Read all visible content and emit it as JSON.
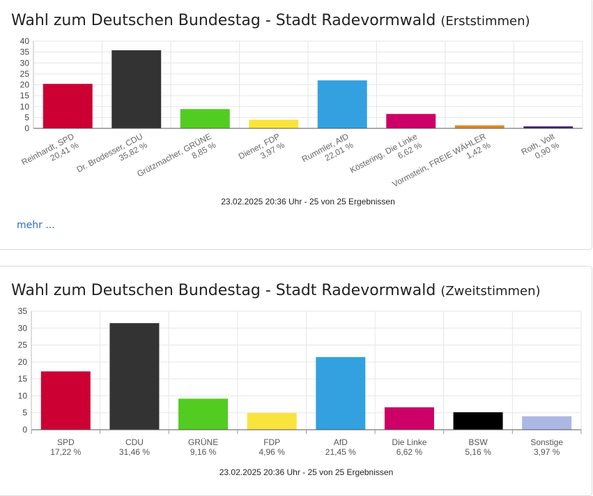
{
  "erststimmen": {
    "title": "Wahl zum Deutschen Bundestag - Stadt Radevormwald",
    "subtitle": "(Erststimmen)",
    "more_link": "mehr ...",
    "chart_data": {
      "type": "bar",
      "categories": [
        "Reinhardt, SPD",
        "Dr. Brodesser, CDU",
        "Grützmacher, GRÜNE",
        "Diener, FDP",
        "Rummler, AfD",
        "Köstering, Die Linke",
        "Vormstein, FREIE WÄHLER",
        "Roth, Volt"
      ],
      "values": [
        20.41,
        35.82,
        8.85,
        3.97,
        22.01,
        6.62,
        1.42,
        0.9
      ],
      "value_labels": [
        "20,41 %",
        "35,82 %",
        "8,85 %",
        "3,97 %",
        "22,01 %",
        "6,62 %",
        "1,42 %",
        "0,90 %"
      ],
      "colors": [
        "#cc0033",
        "#333333",
        "#52cc21",
        "#f9e43d",
        "#33a1e0",
        "#cc0066",
        "#e08a2c",
        "#3d1a6e"
      ],
      "ylim": [
        0,
        40
      ],
      "yticks": [
        0,
        5,
        10,
        15,
        20,
        25,
        30,
        35,
        40
      ],
      "grid": true,
      "footer": "23.02.2025 20:36 Uhr - 25 von 25 Ergebnissen"
    }
  },
  "zweitstimmen": {
    "title": "Wahl zum Deutschen Bundestag - Stadt Radevormwald",
    "subtitle": "(Zweitstimmen)",
    "chart_data": {
      "type": "bar",
      "categories": [
        "SPD",
        "CDU",
        "GRÜNE",
        "FDP",
        "AfD",
        "Die Linke",
        "BSW",
        "Sonstige"
      ],
      "values": [
        17.22,
        31.46,
        9.16,
        4.96,
        21.45,
        6.62,
        5.16,
        3.97
      ],
      "value_labels": [
        "17,22 %",
        "31,46 %",
        "9,16 %",
        "4,96 %",
        "21,45 %",
        "6,62 %",
        "5,16 %",
        "3,97 %"
      ],
      "colors": [
        "#cc0033",
        "#333333",
        "#52cc21",
        "#f9e43d",
        "#33a1e0",
        "#cc0066",
        "#000000",
        "#aab8e3"
      ],
      "ylim": [
        0,
        35
      ],
      "yticks": [
        0,
        5,
        10,
        15,
        20,
        25,
        30,
        35
      ],
      "grid": true,
      "footer": "23.02.2025 20:36 Uhr - 25 von 25 Ergebnissen"
    }
  }
}
